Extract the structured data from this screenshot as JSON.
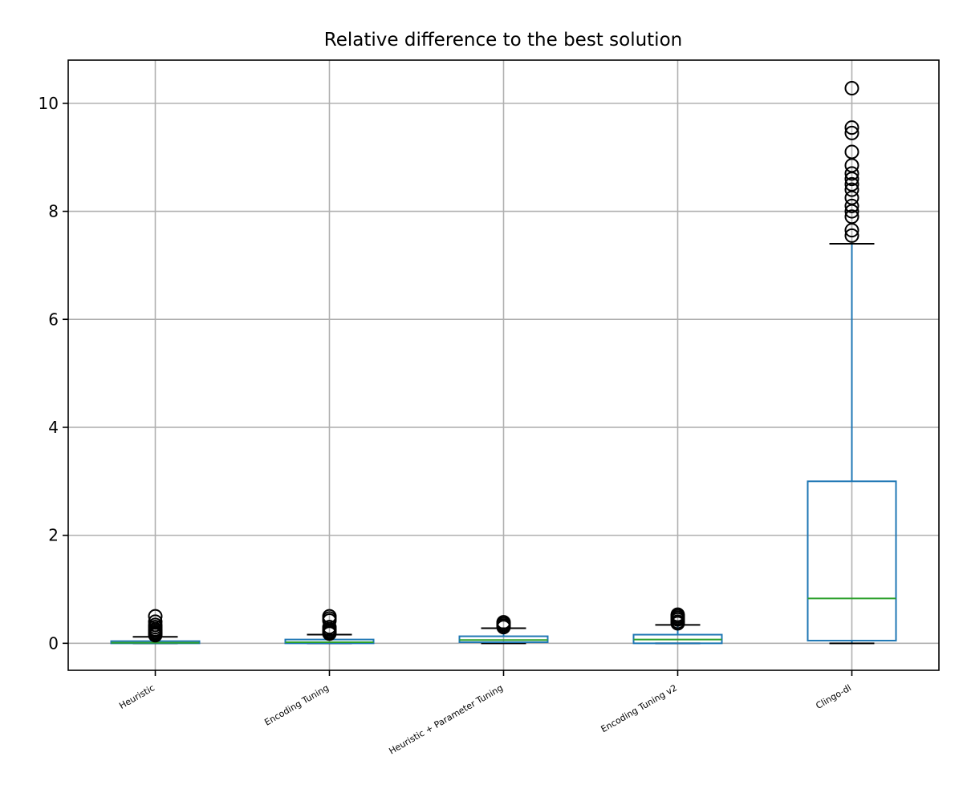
{
  "chart_data": {
    "type": "boxplot",
    "title": "Relative difference to the best solution",
    "xlabel": "",
    "ylabel": "",
    "ylim": [
      -0.5,
      10.8
    ],
    "yticks": [
      0,
      2,
      4,
      6,
      8,
      10
    ],
    "grid": true,
    "legend": "none",
    "categories": [
      "Heuristic",
      "Encoding Tuning",
      "Heuristic + Parameter Tuning",
      "Encoding Tuning v2",
      "Clingo-dl"
    ],
    "boxes": [
      {
        "q1": 0.0,
        "median": 0.01,
        "q3": 0.04,
        "whisker_low": 0.0,
        "whisker_high": 0.12,
        "outliers": [
          0.15,
          0.18,
          0.2,
          0.23,
          0.26,
          0.3,
          0.34,
          0.4,
          0.5
        ]
      },
      {
        "q1": 0.0,
        "median": 0.02,
        "q3": 0.07,
        "whisker_low": 0.0,
        "whisker_high": 0.16,
        "outliers": [
          0.18,
          0.2,
          0.23,
          0.26,
          0.3,
          0.42,
          0.46,
          0.5
        ]
      },
      {
        "q1": 0.02,
        "median": 0.06,
        "q3": 0.13,
        "whisker_low": 0.0,
        "whisker_high": 0.28,
        "outliers": [
          0.3,
          0.33,
          0.36,
          0.39
        ]
      },
      {
        "q1": 0.0,
        "median": 0.07,
        "q3": 0.16,
        "whisker_low": 0.0,
        "whisker_high": 0.34,
        "outliers": [
          0.37,
          0.4,
          0.44,
          0.47,
          0.5,
          0.53
        ]
      },
      {
        "q1": 0.05,
        "median": 0.83,
        "q3": 3.0,
        "whisker_low": 0.0,
        "whisker_high": 7.4,
        "outliers": [
          7.55,
          7.65,
          7.9,
          8.0,
          8.1,
          8.25,
          8.4,
          8.5,
          8.6,
          8.7,
          8.85,
          9.1,
          9.45,
          9.55,
          10.28
        ]
      }
    ],
    "colors": {
      "box": "#1f77b4",
      "median": "#2ca02c",
      "whisker_cap": "#000000",
      "outlier": "#000000",
      "grid": "#b0b0b0",
      "axes": "#000000"
    }
  }
}
